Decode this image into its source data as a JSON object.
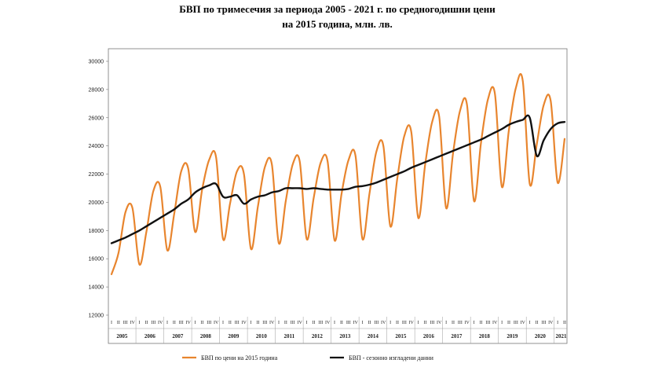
{
  "chart_data": {
    "type": "line",
    "title": "БВП по тримесечия за периода 2005 - 2021 г. по средногодишни цени",
    "subtitle": "на 2015 година, млн. лв.",
    "xlabel": "",
    "ylabel": "",
    "ylim": [
      12000,
      30000
    ],
    "yticks": [
      12000,
      14000,
      16000,
      18000,
      20000,
      22000,
      24000,
      26000,
      28000,
      30000
    ],
    "grid": false,
    "legend_position": "bottom",
    "years": [
      "2005",
      "2006",
      "2007",
      "2008",
      "2009",
      "2010",
      "2011",
      "2012",
      "2013",
      "2014",
      "2015",
      "2016",
      "2017",
      "2018",
      "2019",
      "2020",
      "2021"
    ],
    "quarter_labels": [
      "I",
      "II",
      "III",
      "IV"
    ],
    "series": [
      {
        "name": "БВП  по цени на 2015 година",
        "color": "#E8852E",
        "values": [
          14900,
          16400,
          19300,
          19600,
          15600,
          17900,
          20800,
          21100,
          16600,
          19200,
          22200,
          22400,
          17900,
          20900,
          23000,
          23200,
          17400,
          19900,
          22200,
          22000,
          16700,
          19700,
          22500,
          22700,
          17100,
          20100,
          22700,
          22900,
          17400,
          20300,
          22800,
          22900,
          17300,
          20600,
          23000,
          23300,
          17400,
          20600,
          23600,
          24000,
          18300,
          21700,
          24700,
          25000,
          18900,
          22700,
          25700,
          26100,
          19600,
          23500,
          26500,
          26900,
          20100,
          24200,
          27300,
          27700,
          21100,
          25100,
          28100,
          28600,
          21300,
          24100,
          26900,
          27200,
          21400,
          24500
        ]
      },
      {
        "name": "БВП - сезонно изгладени данни",
        "color": "#111111",
        "values": [
          17100,
          17300,
          17500,
          17750,
          18000,
          18300,
          18600,
          18900,
          19200,
          19500,
          19900,
          20200,
          20700,
          21000,
          21200,
          21300,
          20400,
          20400,
          20500,
          19900,
          20200,
          20400,
          20500,
          20700,
          20800,
          21000,
          21000,
          21000,
          20950,
          21000,
          20950,
          20900,
          20900,
          20900,
          20950,
          21100,
          21150,
          21250,
          21400,
          21600,
          21800,
          22000,
          22200,
          22450,
          22650,
          22850,
          23050,
          23250,
          23450,
          23650,
          23850,
          24050,
          24250,
          24450,
          24700,
          24950,
          25200,
          25500,
          25700,
          25850,
          26000,
          23300,
          24400,
          25200,
          25600,
          25700
        ]
      }
    ]
  }
}
